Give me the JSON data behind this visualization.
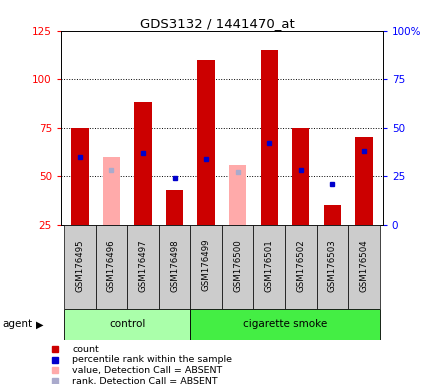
{
  "title": "GDS3132 / 1441470_at",
  "samples": [
    "GSM176495",
    "GSM176496",
    "GSM176497",
    "GSM176498",
    "GSM176499",
    "GSM176500",
    "GSM176501",
    "GSM176502",
    "GSM176503",
    "GSM176504"
  ],
  "red_bars": [
    75,
    0,
    88,
    43,
    110,
    0,
    115,
    75,
    35,
    70
  ],
  "pink_bars": [
    0,
    60,
    0,
    0,
    0,
    56,
    0,
    0,
    0,
    0
  ],
  "blue_dots": [
    60,
    0,
    62,
    49,
    59,
    0,
    67,
    53,
    46,
    63
  ],
  "lightblue_dots": [
    0,
    53,
    0,
    0,
    0,
    52,
    0,
    0,
    0,
    0
  ],
  "ylim_left": [
    25,
    125
  ],
  "ylim_right": [
    0,
    100
  ],
  "left_ticks": [
    25,
    50,
    75,
    100,
    125
  ],
  "right_ticks": [
    0,
    25,
    50,
    75,
    100
  ],
  "right_tick_labels": [
    "0",
    "25",
    "50",
    "75",
    "100%"
  ],
  "grid_lines": [
    50,
    75,
    100
  ],
  "bar_width": 0.55,
  "red_color": "#cc0000",
  "pink_color": "#ffaaaa",
  "blue_color": "#0000cc",
  "lightblue_color": "#aaaacc",
  "control_color": "#aaffaa",
  "smoke_color": "#44ee44",
  "sample_bg": "#cccccc",
  "control_label": "control",
  "smoke_label": "cigarette smoke",
  "agent_label": "agent",
  "legend_items": [
    [
      "#cc0000",
      "count"
    ],
    [
      "#0000cc",
      "percentile rank within the sample"
    ],
    [
      "#ffaaaa",
      "value, Detection Call = ABSENT"
    ],
    [
      "#aaaacc",
      "rank, Detection Call = ABSENT"
    ]
  ]
}
